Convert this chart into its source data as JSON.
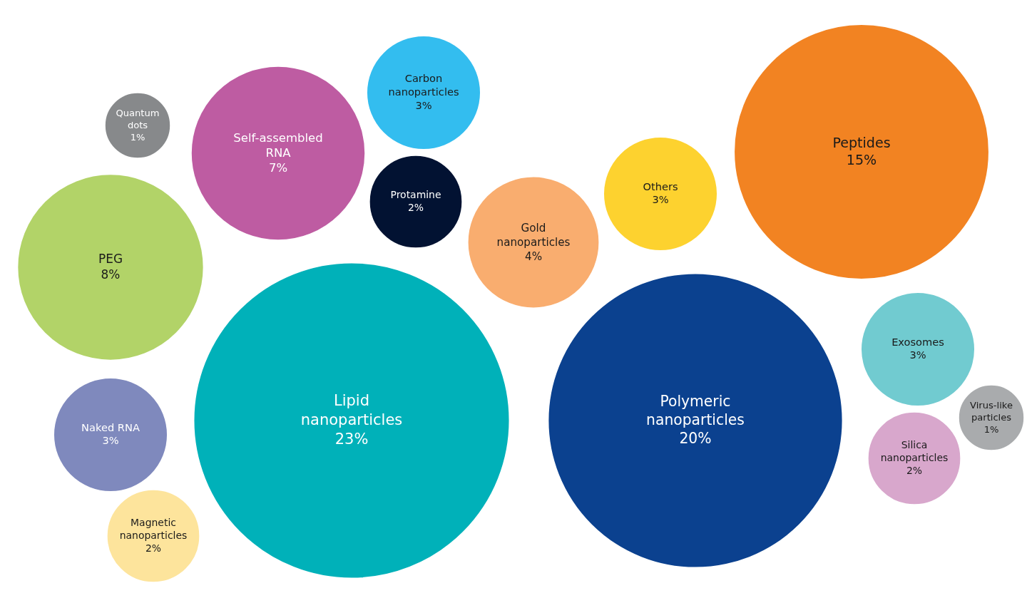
{
  "chart_data": {
    "type": "other",
    "categories": [
      "Quantum dots",
      "Self-assembled RNA",
      "Carbon nanoparticles",
      "Protamine",
      "PEG",
      "Lipid nanoparticles",
      "Gold nanoparticles",
      "Others",
      "Peptides",
      "Polymeric nanoparticles",
      "Exosomes",
      "Naked RNA",
      "Magnetic nanoparticles",
      "Silica nanoparticles",
      "Virus-like particles"
    ],
    "values": [
      1,
      7,
      3,
      2,
      8,
      23,
      4,
      3,
      15,
      20,
      3,
      3,
      2,
      2,
      1
    ],
    "value_labels": [
      "1%",
      "7%",
      "3%",
      "2%",
      "8%",
      "23%",
      "4%",
      "3%",
      "15%",
      "20%",
      "3%",
      "3%",
      "2%",
      "2%",
      "1%"
    ],
    "colors": [
      "#87898b",
      "#be5ca2",
      "#33bdef",
      "#021232",
      "#b2d368",
      "#00b1b9",
      "#f9ad6f",
      "#fdd22f",
      "#f28322",
      "#0b418f",
      "#71cbd0",
      "#7f89bd",
      "#fde49c",
      "#d8a7cc",
      "#a9abad"
    ]
  }
}
